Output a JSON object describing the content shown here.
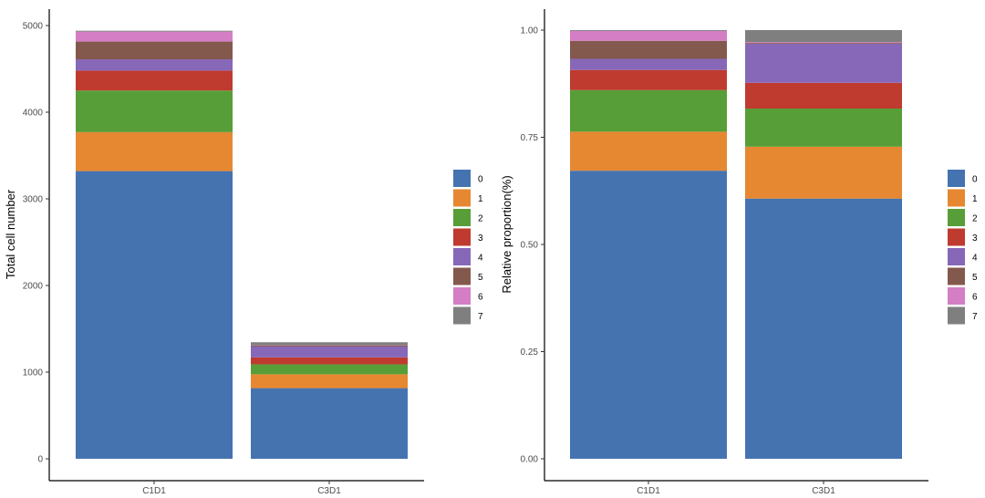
{
  "legend": {
    "labels": [
      "0",
      "1",
      "2",
      "3",
      "4",
      "5",
      "6",
      "7"
    ],
    "colors": [
      "#4473b0",
      "#e68831",
      "#579e38",
      "#bf3a2f",
      "#8767b8",
      "#84594d",
      "#d47ec5",
      "#7f7f7f"
    ]
  },
  "chart_data": [
    {
      "type": "bar",
      "stacked": true,
      "categories": [
        "C1D1",
        "C3D1"
      ],
      "ylabel": "Total cell number",
      "xlabel": "",
      "ylim": [
        0,
        5000
      ],
      "yticks": [
        0,
        1000,
        2000,
        3000,
        4000,
        5000
      ],
      "grid": false,
      "legend_position": "right",
      "series": [
        {
          "name": "0",
          "values": [
            3320,
            815
          ]
        },
        {
          "name": "1",
          "values": [
            450,
            160
          ]
        },
        {
          "name": "2",
          "values": [
            480,
            115
          ]
        },
        {
          "name": "3",
          "values": [
            230,
            80
          ]
        },
        {
          "name": "4",
          "values": [
            130,
            125
          ]
        },
        {
          "name": "5",
          "values": [
            205,
            10
          ]
        },
        {
          "name": "6",
          "values": [
            115,
            5
          ]
        },
        {
          "name": "7",
          "values": [
            10,
            35
          ]
        }
      ]
    },
    {
      "type": "bar",
      "stacked": true,
      "categories": [
        "C1D1",
        "C3D1"
      ],
      "ylabel": "Relative proportion(%)",
      "xlabel": "",
      "ylim": [
        0,
        1
      ],
      "yticks": [
        "0.00",
        "0.25",
        "0.50",
        "0.75",
        "1.00"
      ],
      "grid": false,
      "legend_position": "right",
      "series": [
        {
          "name": "0",
          "values": [
            0.672,
            0.607
          ]
        },
        {
          "name": "1",
          "values": [
            0.091,
            0.121
          ]
        },
        {
          "name": "2",
          "values": [
            0.097,
            0.089
          ]
        },
        {
          "name": "3",
          "values": [
            0.047,
            0.06
          ]
        },
        {
          "name": "4",
          "values": [
            0.026,
            0.091
          ]
        },
        {
          "name": "5",
          "values": [
            0.042,
            0.002
          ]
        },
        {
          "name": "6",
          "values": [
            0.023,
            0.002
          ]
        },
        {
          "name": "7",
          "values": [
            0.002,
            0.028
          ]
        }
      ]
    }
  ]
}
